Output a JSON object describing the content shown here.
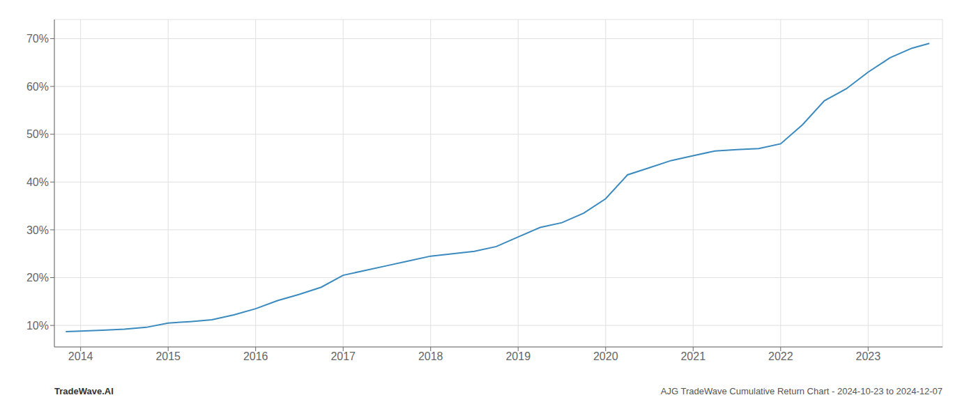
{
  "chart_data": {
    "type": "line",
    "x": [
      2013.83,
      2014.0,
      2014.25,
      2014.5,
      2014.75,
      2015.0,
      2015.25,
      2015.5,
      2015.75,
      2016.0,
      2016.25,
      2016.5,
      2016.75,
      2017.0,
      2017.25,
      2017.5,
      2017.75,
      2018.0,
      2018.25,
      2018.5,
      2018.75,
      2019.0,
      2019.25,
      2019.5,
      2019.75,
      2020.0,
      2020.25,
      2020.5,
      2020.75,
      2021.0,
      2021.25,
      2021.5,
      2021.75,
      2022.0,
      2022.25,
      2022.5,
      2022.75,
      2023.0,
      2023.25,
      2023.5,
      2023.7
    ],
    "values": [
      8.7,
      8.8,
      9.0,
      9.2,
      9.6,
      10.5,
      10.8,
      11.2,
      12.2,
      13.5,
      15.2,
      16.5,
      18.0,
      20.5,
      21.5,
      22.5,
      23.5,
      24.5,
      25.0,
      25.5,
      26.5,
      28.5,
      30.5,
      31.5,
      33.5,
      36.5,
      41.5,
      43.0,
      44.5,
      45.5,
      46.5,
      46.8,
      47.0,
      48.0,
      52.0,
      57.0,
      59.5,
      63.0,
      66.0,
      68.0,
      69.0
    ],
    "color": "#3a8abf",
    "xlim": [
      2013.7,
      2023.85
    ],
    "ylim": [
      5.5,
      74
    ],
    "xticks": [
      2014,
      2015,
      2016,
      2017,
      2018,
      2019,
      2020,
      2021,
      2022,
      2023
    ],
    "yticks": [
      {
        "value": 10,
        "label": "10%"
      },
      {
        "value": 20,
        "label": "20%"
      },
      {
        "value": 30,
        "label": "30%"
      },
      {
        "value": 40,
        "label": "40%"
      },
      {
        "value": 50,
        "label": "50%"
      },
      {
        "value": 60,
        "label": "60%"
      },
      {
        "value": 70,
        "label": "70%"
      }
    ],
    "grid": true,
    "annotations": [
      "TradeWave.AI",
      "AJG TradeWave Cumulative Return Chart - 2024-10-23 to 2024-12-07"
    ]
  }
}
